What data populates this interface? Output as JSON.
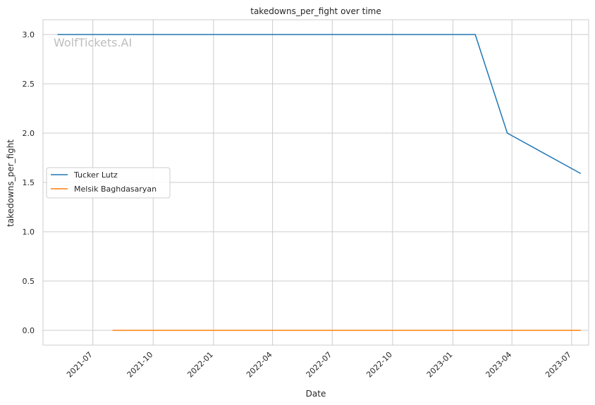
{
  "chart_data": {
    "type": "line",
    "title": "takedowns_per_fight over time",
    "xlabel": "Date",
    "ylabel": "takedowns_per_fight",
    "watermark": "WolfTickets.AI",
    "x_ticks": [
      "2021-07",
      "2021-10",
      "2022-01",
      "2022-04",
      "2022-07",
      "2022-10",
      "2023-01",
      "2023-04",
      "2023-07"
    ],
    "y_ticks": [
      "0.0",
      "0.5",
      "1.0",
      "1.5",
      "2.0",
      "2.5",
      "3.0"
    ],
    "xlim": [
      "2021-04-16",
      "2023-07-27"
    ],
    "ylim": [
      -0.15,
      3.15
    ],
    "grid": true,
    "legend_position": "center-left",
    "series": [
      {
        "name": "Tucker Lutz",
        "color": "#1f77b4",
        "x": [
          "2021-05-08",
          "2023-02-04",
          "2023-03-25",
          "2023-07-15"
        ],
        "y": [
          3.0,
          3.0,
          2.0,
          1.59
        ]
      },
      {
        "name": "Melsik Baghdasaryan",
        "color": "#ff7f0e",
        "x": [
          "2021-07-31",
          "2023-07-15"
        ],
        "y": [
          0.0,
          0.0
        ]
      }
    ]
  }
}
